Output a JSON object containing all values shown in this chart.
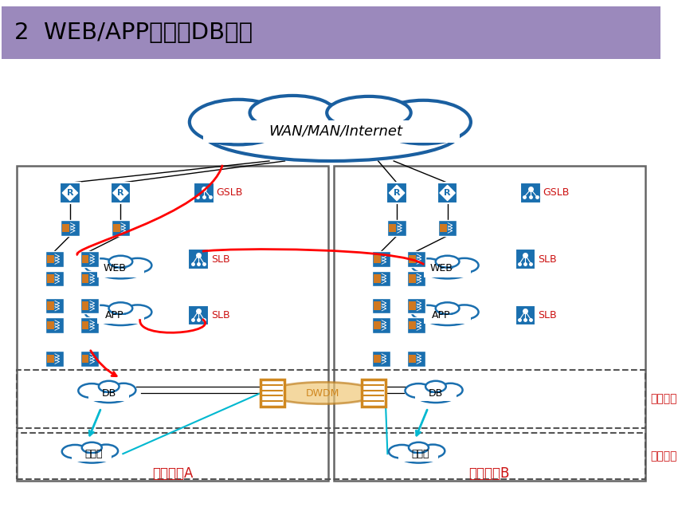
{
  "title": "2  WEB/APP双活，DB主备",
  "title_bg": "#9b89bc",
  "bg_color": "#ffffff",
  "dc_a_label": "数据中心A",
  "dc_b_label": "数据中心B",
  "wan_label": "WAN/MAN/Internet",
  "dwdm_label": "DWDM",
  "gslb_label": "GSLB",
  "slb_label": "SLB",
  "web_label": "WEB",
  "app_label": "APP",
  "db_label": "DB",
  "storage_label": "存储网",
  "zhubeijiqun_label": "主备集群",
  "zhubeicunchu_label": "主备存储",
  "router_color": "#1a6faf",
  "server_color": "#1a6faf",
  "server_stripe_color": "#d07820",
  "dwdm_color": "#d08820",
  "label_red": "#cc1111",
  "dc_border_color": "#666666"
}
